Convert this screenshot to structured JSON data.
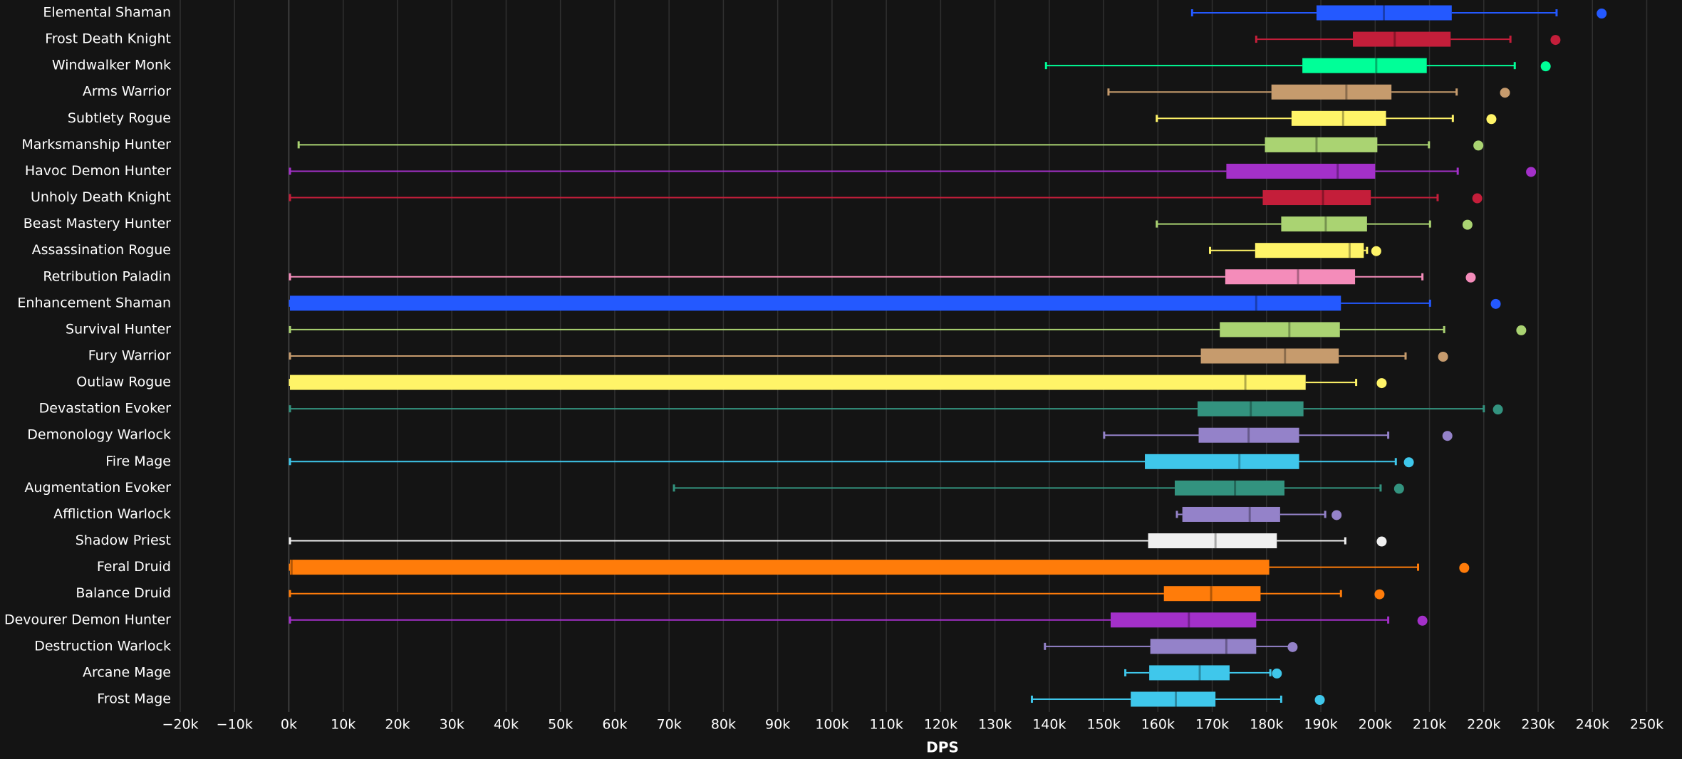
{
  "chart_data": {
    "type": "box",
    "x_label": "DPS",
    "xlim": [
      -20,
      254
    ],
    "xticks": [
      {
        "value": -20,
        "label": "−20k"
      },
      {
        "value": -10,
        "label": "−10k"
      },
      {
        "value": 0,
        "label": "0k"
      },
      {
        "value": 10,
        "label": "10k"
      },
      {
        "value": 20,
        "label": "20k"
      },
      {
        "value": 30,
        "label": "30k"
      },
      {
        "value": 40,
        "label": "40k"
      },
      {
        "value": 50,
        "label": "50k"
      },
      {
        "value": 60,
        "label": "60k"
      },
      {
        "value": 70,
        "label": "70k"
      },
      {
        "value": 80,
        "label": "80k"
      },
      {
        "value": 90,
        "label": "90k"
      },
      {
        "value": 100,
        "label": "100k"
      },
      {
        "value": 110,
        "label": "110k"
      },
      {
        "value": 120,
        "label": "120k"
      },
      {
        "value": 130,
        "label": "130k"
      },
      {
        "value": 140,
        "label": "140k"
      },
      {
        "value": 150,
        "label": "150k"
      },
      {
        "value": 160,
        "label": "160k"
      },
      {
        "value": 170,
        "label": "170k"
      },
      {
        "value": 180,
        "label": "180k"
      },
      {
        "value": 190,
        "label": "190k"
      },
      {
        "value": 200,
        "label": "200k"
      },
      {
        "value": 210,
        "label": "210k"
      },
      {
        "value": 220,
        "label": "220k"
      },
      {
        "value": 230,
        "label": "230k"
      },
      {
        "value": 240,
        "label": "240k"
      },
      {
        "value": 250,
        "label": "250k"
      }
    ],
    "grid": true,
    "categories": [
      "Elemental Shaman",
      "Frost Death Knight",
      "Windwalker Monk",
      "Arms Warrior",
      "Subtlety Rogue",
      "Marksmanship Hunter",
      "Havoc Demon Hunter",
      "Unholy Death Knight",
      "Beast Mastery Hunter",
      "Assassination Rogue",
      "Retribution Paladin",
      "Enhancement Shaman",
      "Survival Hunter",
      "Fury Warrior",
      "Outlaw Rogue",
      "Devastation Evoker",
      "Demonology Warlock",
      "Fire Mage",
      "Augmentation Evoker",
      "Affliction Warlock",
      "Shadow Priest",
      "Feral Druid",
      "Balance Druid",
      "Devourer Demon Hunter",
      "Destruction Warlock",
      "Arcane Mage",
      "Frost Mage"
    ],
    "boxes": [
      {
        "min": 166.3,
        "q1": 189.2,
        "median": 201.6,
        "q3": 214.1,
        "max": 233.4,
        "outlier": 241.7,
        "color": "#2459ff"
      },
      {
        "min": 178.1,
        "q1": 195.9,
        "median": 203.6,
        "q3": 213.9,
        "max": 224.9,
        "outlier": 233.2,
        "color": "#c41e3a"
      },
      {
        "min": 139.4,
        "q1": 186.6,
        "median": 200.2,
        "q3": 209.5,
        "max": 225.7,
        "outlier": 231.4,
        "color": "#00ff98"
      },
      {
        "min": 150.9,
        "q1": 180.9,
        "median": 194.7,
        "q3": 203.0,
        "max": 215.0,
        "outlier": 223.9,
        "color": "#c69b6d"
      },
      {
        "min": 159.8,
        "q1": 184.6,
        "median": 194.1,
        "q3": 202.0,
        "max": 214.3,
        "outlier": 221.4,
        "color": "#fff468"
      },
      {
        "min": 1.8,
        "q1": 179.7,
        "median": 189.2,
        "q3": 200.4,
        "max": 209.9,
        "outlier": 219.0,
        "color": "#aad372"
      },
      {
        "min": 0.2,
        "q1": 172.6,
        "median": 193.1,
        "q3": 200.0,
        "max": 215.2,
        "outlier": 228.7,
        "color": "#a330c9"
      },
      {
        "min": 0.2,
        "q1": 179.3,
        "median": 190.4,
        "q3": 199.2,
        "max": 211.5,
        "outlier": 218.8,
        "color": "#c41e3a"
      },
      {
        "min": 159.8,
        "q1": 182.7,
        "median": 190.9,
        "q3": 198.5,
        "max": 210.1,
        "outlier": 217.0,
        "color": "#aad372"
      },
      {
        "min": 169.6,
        "q1": 177.9,
        "median": 195.3,
        "q3": 197.9,
        "max": 198.5,
        "outlier": 200.2,
        "color": "#fff468"
      },
      {
        "min": 0.2,
        "q1": 172.4,
        "median": 185.8,
        "q3": 196.3,
        "max": 208.7,
        "outlier": 217.6,
        "color": "#f48cba"
      },
      {
        "min": 0.2,
        "q1": 0.2,
        "median": 178.1,
        "q3": 193.7,
        "max": 210.1,
        "outlier": 222.2,
        "color": "#2459ff"
      },
      {
        "min": 0.2,
        "q1": 171.4,
        "median": 184.2,
        "q3": 193.5,
        "max": 212.7,
        "outlier": 226.9,
        "color": "#aad372"
      },
      {
        "min": 0.2,
        "q1": 167.9,
        "median": 183.4,
        "q3": 193.3,
        "max": 205.6,
        "outlier": 212.5,
        "color": "#c69b6d"
      },
      {
        "min": 0.2,
        "q1": 0.2,
        "median": 176.1,
        "q3": 187.2,
        "max": 196.5,
        "outlier": 201.2,
        "color": "#fff468"
      },
      {
        "min": 0.2,
        "q1": 167.3,
        "median": 177.1,
        "q3": 186.8,
        "max": 220.0,
        "outlier": 222.6,
        "color": "#33937f"
      },
      {
        "min": 150.1,
        "q1": 167.5,
        "median": 176.7,
        "q3": 186.0,
        "max": 202.4,
        "outlier": 213.3,
        "color": "#9482c9"
      },
      {
        "min": 0.2,
        "q1": 157.6,
        "median": 175.0,
        "q3": 186.0,
        "max": 203.8,
        "outlier": 206.2,
        "color": "#3fc7eb"
      },
      {
        "min": 70.9,
        "q1": 163.1,
        "median": 174.2,
        "q3": 183.3,
        "max": 201.0,
        "outlier": 204.4,
        "color": "#33937f"
      },
      {
        "min": 163.5,
        "q1": 164.5,
        "median": 176.9,
        "q3": 182.5,
        "max": 190.8,
        "outlier": 192.9,
        "color": "#9482c9"
      },
      {
        "min": 0.2,
        "q1": 158.2,
        "median": 170.6,
        "q3": 181.9,
        "max": 194.5,
        "outlier": 201.2,
        "color": "#f0f0f0"
      },
      {
        "min": 0.2,
        "q1": 0.2,
        "median": 0.5,
        "q3": 180.5,
        "max": 207.9,
        "outlier": 216.4,
        "color": "#ff7c0a"
      },
      {
        "min": 0.2,
        "q1": 161.1,
        "median": 169.8,
        "q3": 178.9,
        "max": 193.7,
        "outlier": 200.8,
        "color": "#ff7c0a"
      },
      {
        "min": 0.2,
        "q1": 151.3,
        "median": 165.7,
        "q3": 178.1,
        "max": 202.4,
        "outlier": 208.7,
        "color": "#a330c9"
      },
      {
        "min": 139.2,
        "q1": 158.6,
        "median": 172.6,
        "q3": 178.1,
        "max": 184.4,
        "outlier": 184.8,
        "color": "#9482c9"
      },
      {
        "min": 154.0,
        "q1": 158.4,
        "median": 167.7,
        "q3": 173.2,
        "max": 180.7,
        "outlier": 181.9,
        "color": "#3fc7eb"
      },
      {
        "min": 136.8,
        "q1": 155.0,
        "median": 163.3,
        "q3": 170.6,
        "max": 182.7,
        "outlier": 189.8,
        "color": "#3fc7eb"
      }
    ]
  }
}
